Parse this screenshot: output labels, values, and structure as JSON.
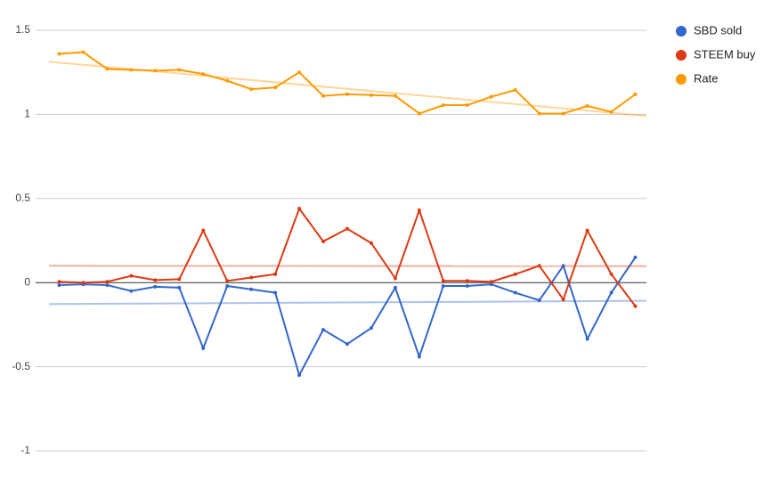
{
  "chart_data": {
    "type": "line",
    "categories": [
      null,
      null,
      null,
      null,
      null,
      null,
      null,
      null,
      null,
      null,
      null,
      null,
      null,
      null,
      null,
      null,
      null,
      null,
      null,
      null,
      null,
      null,
      null,
      null,
      null
    ],
    "series": [
      {
        "name": "SBD sold",
        "color": "#3366cc",
        "values": [
          -0.015,
          -0.01,
          -0.015,
          -0.05,
          -0.025,
          -0.03,
          -0.39,
          -0.02,
          -0.04,
          -0.06,
          -0.55,
          -0.28,
          -0.365,
          -0.27,
          -0.03,
          -0.44,
          -0.02,
          -0.02,
          -0.01,
          -0.06,
          -0.105,
          0.1,
          -0.335,
          -0.06,
          0.15
        ]
      },
      {
        "name": "STEEM buy",
        "color": "#dc3912",
        "values": [
          0.005,
          0,
          0.005,
          0.04,
          0.015,
          0.02,
          0.31,
          0.01,
          0.03,
          0.05,
          0.44,
          0.245,
          0.32,
          0.235,
          0.025,
          0.43,
          0.01,
          0.01,
          0.005,
          0.05,
          0.1,
          -0.1,
          0.31,
          0.05,
          -0.14
        ]
      },
      {
        "name": "Rate",
        "color": "#ff9900",
        "values": [
          1.36,
          1.37,
          1.27,
          1.265,
          1.26,
          1.265,
          1.24,
          1.2,
          1.15,
          1.16,
          1.25,
          1.11,
          1.12,
          1.115,
          1.11,
          1.005,
          1.055,
          1.055,
          1.105,
          1.145,
          1.005,
          1.005,
          1.05,
          1.015,
          1.12
        ]
      }
    ],
    "ylim": [
      -1,
      1.5
    ],
    "yticks": [
      -1,
      -0.5,
      0,
      0.5,
      1,
      1.5
    ],
    "grid": true,
    "trendlines": true,
    "legend": "right"
  }
}
